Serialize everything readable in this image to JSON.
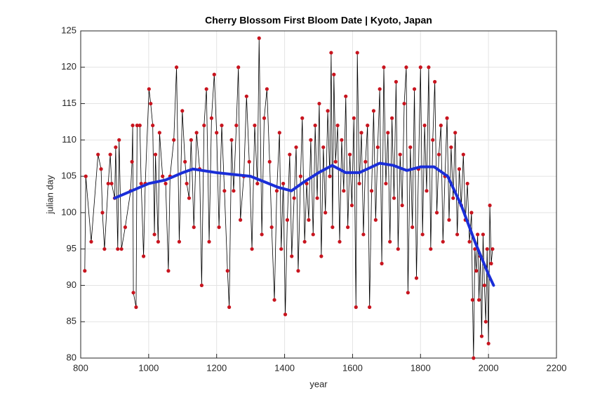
{
  "chart_data": {
    "type": "line",
    "title": "Cherry Blossom First Bloom Date | Kyoto, Japan",
    "xlabel": "year",
    "ylabel": "julian day",
    "xlim": [
      800,
      2200
    ],
    "xticks": [
      800,
      1000,
      1200,
      1400,
      1600,
      1800,
      2000,
      2200
    ],
    "ylim": [
      80,
      125
    ],
    "yticks": [
      80,
      85,
      90,
      95,
      100,
      105,
      110,
      115,
      120,
      125
    ],
    "grid": true,
    "series": [
      {
        "color": "#c8141e",
        "line_color": "#000000",
        "markers": true,
        "x": [
          812,
          815,
          831,
          851,
          860,
          864,
          870,
          881,
          887,
          891,
          900,
          903,
          909,
          913,
          920,
          931,
          947,
          951,
          953,
          955,
          963,
          966,
          974,
          978,
          985,
          990,
          1001,
          1006,
          1012,
          1017,
          1020,
          1028,
          1032,
          1041,
          1050,
          1058,
          1063,
          1074,
          1082,
          1090,
          1099,
          1107,
          1112,
          1119,
          1125,
          1133,
          1141,
          1150,
          1156,
          1163,
          1170,
          1178,
          1185,
          1193,
          1200,
          1207,
          1215,
          1223,
          1232,
          1237,
          1244,
          1250,
          1258,
          1264,
          1270,
          1280,
          1288,
          1296,
          1304,
          1312,
          1320,
          1325,
          1333,
          1340,
          1348,
          1356,
          1362,
          1370,
          1377,
          1385,
          1390,
          1396,
          1402,
          1408,
          1415,
          1421,
          1428,
          1434,
          1440,
          1447,
          1452,
          1459,
          1465,
          1471,
          1477,
          1484,
          1490,
          1496,
          1502,
          1508,
          1514,
          1520,
          1527,
          1533,
          1537,
          1541,
          1545,
          1550,
          1556,
          1562,
          1568,
          1574,
          1580,
          1586,
          1592,
          1598,
          1604,
          1610,
          1614,
          1620,
          1626,
          1632,
          1638,
          1644,
          1650,
          1656,
          1662,
          1668,
          1674,
          1680,
          1686,
          1692,
          1698,
          1704,
          1710,
          1716,
          1722,
          1728,
          1734,
          1740,
          1746,
          1752,
          1758,
          1763,
          1770,
          1776,
          1782,
          1788,
          1794,
          1800,
          1806,
          1812,
          1818,
          1824,
          1830,
          1836,
          1842,
          1848,
          1854,
          1860,
          1866,
          1872,
          1878,
          1884,
          1890,
          1896,
          1902,
          1908,
          1914,
          1920,
          1926,
          1932,
          1938,
          1944,
          1950,
          1953,
          1956,
          1960,
          1964,
          1968,
          1972,
          1976,
          1980,
          1984,
          1988,
          1992,
          1996,
          2000,
          2004,
          2008,
          2012
        ],
        "values": [
          92,
          105,
          96,
          108,
          106,
          100,
          95,
          104,
          108,
          104,
          102,
          109,
          95,
          110,
          95,
          98,
          103,
          107,
          112,
          89,
          87,
          112,
          112,
          104,
          94,
          104,
          117,
          115,
          112,
          97,
          108,
          96,
          111,
          105,
          104,
          92,
          105,
          110,
          120,
          96,
          114,
          107,
          104,
          102,
          110,
          98,
          111,
          106,
          90,
          112,
          117,
          96,
          113,
          119,
          111,
          98,
          112,
          103,
          92,
          87,
          110,
          103,
          112,
          120,
          99,
          105,
          116,
          107,
          95,
          112,
          104,
          124,
          97,
          113,
          117,
          107,
          98,
          88,
          103,
          111,
          95,
          104,
          86,
          99,
          108,
          94,
          102,
          109,
          92,
          105,
          113,
          96,
          104,
          99,
          110,
          97,
          112,
          102,
          115,
          94,
          109,
          100,
          114,
          105,
          122,
          98,
          119,
          107,
          112,
          96,
          110,
          103,
          116,
          98,
          108,
          101,
          113,
          87,
          122,
          104,
          111,
          97,
          107,
          112,
          87,
          103,
          114,
          99,
          109,
          117,
          93,
          120,
          104,
          111,
          96,
          113,
          102,
          118,
          95,
          108,
          101,
          115,
          120,
          89,
          109,
          98,
          117,
          91,
          106,
          120,
          97,
          112,
          103,
          120,
          95,
          110,
          118,
          100,
          108,
          112,
          96,
          105,
          113,
          99,
          109,
          102,
          111,
          97,
          106,
          101,
          108,
          99,
          104,
          96,
          100,
          88,
          80,
          95,
          92,
          97,
          88,
          94,
          83,
          97,
          90,
          85,
          95,
          82,
          101,
          93,
          95
        ]
      },
      {
        "color": "#1a2ed8",
        "markers": false,
        "x": [
          900,
          950,
          1000,
          1050,
          1100,
          1130,
          1200,
          1300,
          1380,
          1420,
          1450,
          1500,
          1540,
          1580,
          1620,
          1680,
          1720,
          1760,
          1800,
          1840,
          1880,
          1920,
          1960,
          2000,
          2015
        ],
        "values": [
          102,
          103,
          104,
          104.5,
          105.5,
          106,
          105.5,
          105,
          103.5,
          103,
          104,
          105.5,
          106.5,
          105.5,
          105.5,
          106.8,
          106.5,
          105.8,
          106.3,
          106.3,
          105,
          101,
          96,
          91.5,
          90
        ]
      }
    ]
  }
}
